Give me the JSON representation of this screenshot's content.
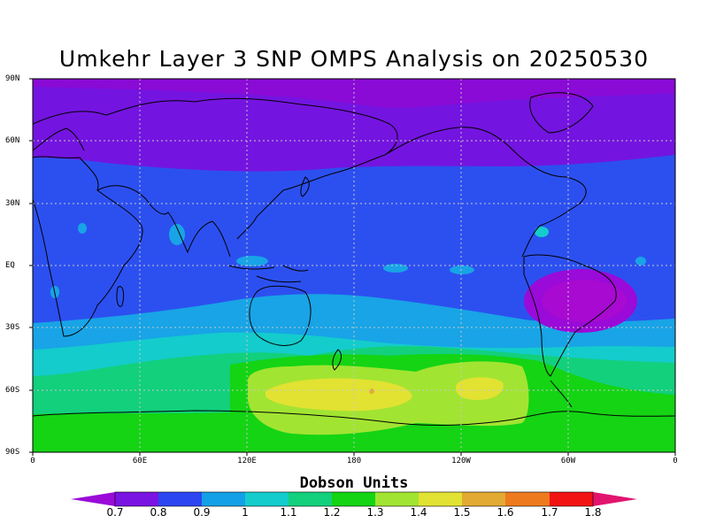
{
  "title": "Umkehr Layer 3 SNP OMPS Analysis on 20250530",
  "lat_labels": [
    "90N",
    "60N",
    "30N",
    "EQ",
    "30S",
    "60S",
    "90S"
  ],
  "lon_labels": [
    "0",
    "60E",
    "120E",
    "180",
    "120W",
    "60W",
    "0"
  ],
  "colorbar": {
    "title": "Dobson Units",
    "labels": [
      "0.7",
      "0.8",
      "0.9",
      "1",
      "1.1",
      "1.2",
      "1.3",
      "1.4",
      "1.5",
      "1.6",
      "1.7",
      "1.8"
    ],
    "colors": [
      "#9a0ad8",
      "#7a14e2",
      "#2c46f2",
      "#14a0e6",
      "#14cccc",
      "#12d07c",
      "#14d414",
      "#a2e432",
      "#e2e232",
      "#e2aa32",
      "#ee7a1e",
      "#f21414",
      "#e2146e"
    ]
  },
  "colors": {
    "polar_north": "#8a0ad6",
    "north_band": "#7414e0",
    "tropics": "#2c50f0",
    "south_mid1": "#18a4e6",
    "south_mid2": "#14cccc",
    "south_mid3": "#12d07c",
    "southern_high": "#14d414",
    "ring": "#a2e432",
    "peak": "#e2e232",
    "southamerica_low": "#9a0ad8",
    "southamerica_core": "#a80ad2"
  }
}
